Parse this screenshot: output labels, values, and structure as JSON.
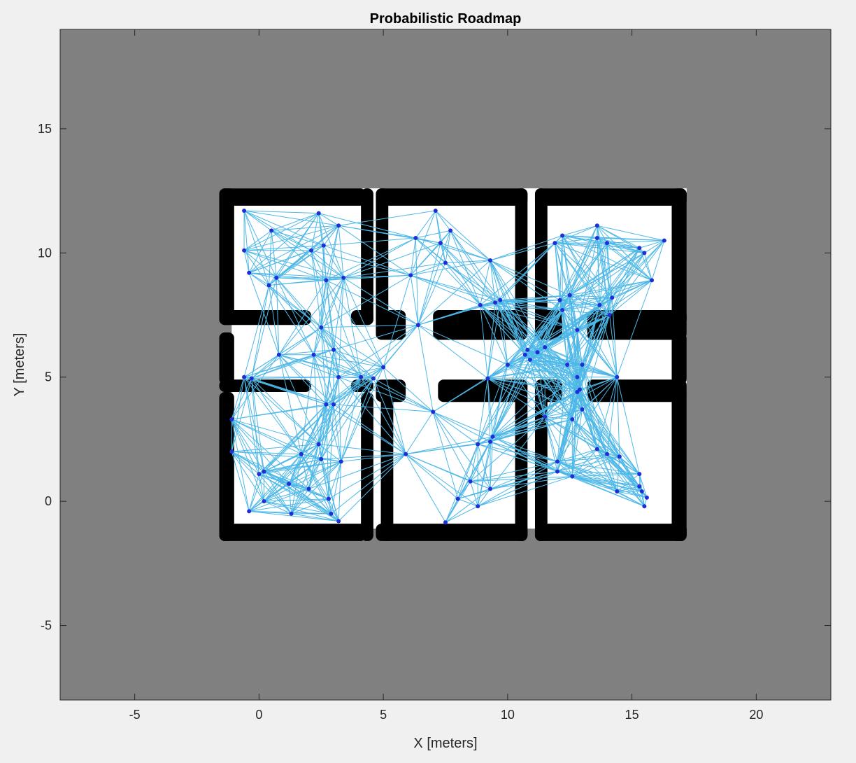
{
  "chart_data": {
    "type": "scatter",
    "title": "Probabilistic Roadmap",
    "xlabel": "X [meters]",
    "ylabel": "Y [meters]",
    "xlim": [
      -8,
      23
    ],
    "ylim": [
      -8,
      19
    ],
    "xticks": [
      -5,
      0,
      5,
      10,
      15,
      20
    ],
    "yticks": [
      -5,
      0,
      5,
      10,
      15
    ],
    "xtick_labels": [
      "-5",
      "0",
      "5",
      "10",
      "15",
      "20"
    ],
    "ytick_labels": [
      "-5",
      "0",
      "5",
      "10",
      "15"
    ],
    "colors": {
      "unknown_space": "#808080",
      "free_space": "#ffffff",
      "walls": "#000000",
      "edges": "#4db8e8",
      "nodes": "#1f2fd6"
    },
    "map": {
      "free_space": [
        {
          "x": [
            -1.1,
            17.2
          ],
          "y": [
            -1.1,
            12.6
          ]
        }
      ],
      "walls": [
        {
          "x": [
            -1.6,
            4.3
          ],
          "y": [
            11.9,
            12.6
          ]
        },
        {
          "x": [
            4.7,
            10.8
          ],
          "y": [
            11.9,
            12.6
          ]
        },
        {
          "x": [
            11.1,
            17.2
          ],
          "y": [
            11.9,
            12.6
          ]
        },
        {
          "x": [
            -1.6,
            4.3
          ],
          "y": [
            -1.6,
            -0.9
          ]
        },
        {
          "x": [
            4.7,
            10.8
          ],
          "y": [
            -1.6,
            -0.9
          ]
        },
        {
          "x": [
            11.1,
            17.2
          ],
          "y": [
            -1.6,
            -0.9
          ]
        },
        {
          "x": [
            -1.6,
            -1.0
          ],
          "y": [
            7.1,
            12.6
          ]
        },
        {
          "x": [
            -1.6,
            -1.0
          ],
          "y": [
            4.7,
            6.8
          ]
        },
        {
          "x": [
            -1.6,
            -1.0
          ],
          "y": [
            -1.6,
            4.4
          ]
        },
        {
          "x": [
            16.6,
            17.2
          ],
          "y": [
            7.1,
            12.6
          ]
        },
        {
          "x": [
            16.6,
            17.2
          ],
          "y": [
            4.7,
            6.8
          ]
        },
        {
          "x": [
            16.6,
            17.2
          ],
          "y": [
            -1.6,
            4.4
          ]
        },
        {
          "x": [
            4.1,
            4.6
          ],
          "y": [
            7.1,
            12.6
          ]
        },
        {
          "x": [
            4.7,
            5.2
          ],
          "y": [
            7.1,
            12.6
          ]
        },
        {
          "x": [
            10.3,
            10.8
          ],
          "y": [
            7.1,
            12.6
          ]
        },
        {
          "x": [
            11.1,
            11.6
          ],
          "y": [
            7.1,
            12.6
          ]
        },
        {
          "x": [
            4.1,
            4.6
          ],
          "y": [
            -1.6,
            4.4
          ]
        },
        {
          "x": [
            4.9,
            5.4
          ],
          "y": [
            -1.6,
            4.4
          ]
        },
        {
          "x": [
            10.3,
            10.8
          ],
          "y": [
            -1.6,
            4.4
          ]
        },
        {
          "x": [
            11.1,
            11.6
          ],
          "y": [
            -1.6,
            4.4
          ]
        },
        {
          "x": [
            -1.6,
            2.1
          ],
          "y": [
            7.1,
            7.7
          ]
        },
        {
          "x": [
            -1.6,
            2.1
          ],
          "y": [
            4.4,
            4.9
          ]
        },
        {
          "x": [
            3.7,
            4.6
          ],
          "y": [
            7.1,
            7.7
          ]
        },
        {
          "x": [
            3.7,
            4.6
          ],
          "y": [
            4.4,
            4.9
          ]
        },
        {
          "x": [
            4.7,
            5.9
          ],
          "y": [
            6.5,
            7.7
          ]
        },
        {
          "x": [
            4.7,
            5.9
          ],
          "y": [
            4.0,
            4.9
          ]
        },
        {
          "x": [
            7.0,
            10.8
          ],
          "y": [
            6.5,
            7.7
          ]
        },
        {
          "x": [
            7.2,
            10.8
          ],
          "y": [
            4.0,
            4.9
          ]
        },
        {
          "x": [
            11.1,
            12.2
          ],
          "y": [
            6.5,
            7.7
          ]
        },
        {
          "x": [
            11.1,
            12.2
          ],
          "y": [
            4.0,
            4.9
          ]
        },
        {
          "x": [
            13.2,
            17.2
          ],
          "y": [
            6.5,
            7.7
          ]
        },
        {
          "x": [
            13.2,
            17.2
          ],
          "y": [
            4.0,
            4.9
          ]
        }
      ]
    },
    "nodes": [
      {
        "x": -0.6,
        "y": 11.7
      },
      {
        "x": 2.4,
        "y": 11.6
      },
      {
        "x": 0.5,
        "y": 10.9
      },
      {
        "x": 3.2,
        "y": 11.1
      },
      {
        "x": -0.6,
        "y": 10.1
      },
      {
        "x": 2.1,
        "y": 10.1
      },
      {
        "x": 2.6,
        "y": 10.3
      },
      {
        "x": -0.4,
        "y": 9.2
      },
      {
        "x": 0.7,
        "y": 9.0
      },
      {
        "x": 0.4,
        "y": 8.7
      },
      {
        "x": 2.7,
        "y": 8.9
      },
      {
        "x": 3.4,
        "y": 9.0
      },
      {
        "x": 7.1,
        "y": 11.7
      },
      {
        "x": 6.3,
        "y": 10.6
      },
      {
        "x": 7.7,
        "y": 10.9
      },
      {
        "x": 7.3,
        "y": 10.4
      },
      {
        "x": 7.5,
        "y": 9.6
      },
      {
        "x": 9.3,
        "y": 9.7
      },
      {
        "x": 6.1,
        "y": 9.1
      },
      {
        "x": 8.9,
        "y": 7.9
      },
      {
        "x": 9.5,
        "y": 8.0
      },
      {
        "x": 9.7,
        "y": 8.1
      },
      {
        "x": 6.4,
        "y": 7.1
      },
      {
        "x": 12.2,
        "y": 10.7
      },
      {
        "x": 11.9,
        "y": 10.4
      },
      {
        "x": 13.6,
        "y": 11.1
      },
      {
        "x": 13.6,
        "y": 10.6
      },
      {
        "x": 14.0,
        "y": 10.4
      },
      {
        "x": 15.3,
        "y": 10.2
      },
      {
        "x": 15.5,
        "y": 10.0
      },
      {
        "x": 16.3,
        "y": 10.5
      },
      {
        "x": 15.8,
        "y": 8.9
      },
      {
        "x": 12.1,
        "y": 8.1
      },
      {
        "x": 12.5,
        "y": 8.3
      },
      {
        "x": 13.7,
        "y": 7.9
      },
      {
        "x": 14.2,
        "y": 8.2
      },
      {
        "x": 14.1,
        "y": 7.5
      },
      {
        "x": 12.2,
        "y": 7.7
      },
      {
        "x": 12.8,
        "y": 6.9
      },
      {
        "x": 2.5,
        "y": 7.0
      },
      {
        "x": 0.8,
        "y": 5.9
      },
      {
        "x": 2.2,
        "y": 5.9
      },
      {
        "x": 3.0,
        "y": 6.1
      },
      {
        "x": -0.6,
        "y": 5.0
      },
      {
        "x": -0.3,
        "y": 4.95
      },
      {
        "x": 3.2,
        "y": 5.0
      },
      {
        "x": 4.1,
        "y": 5.0
      },
      {
        "x": 4.6,
        "y": 4.95
      },
      {
        "x": 5.0,
        "y": 5.4
      },
      {
        "x": 9.2,
        "y": 4.95
      },
      {
        "x": 10.0,
        "y": 5.5
      },
      {
        "x": 10.7,
        "y": 5.9
      },
      {
        "x": 10.8,
        "y": 6.1
      },
      {
        "x": 10.9,
        "y": 5.7
      },
      {
        "x": 11.2,
        "y": 6.0
      },
      {
        "x": 11.5,
        "y": 6.2
      },
      {
        "x": 12.4,
        "y": 5.5
      },
      {
        "x": 12.8,
        "y": 5.0
      },
      {
        "x": 13.0,
        "y": 5.5
      },
      {
        "x": 14.4,
        "y": 5.0
      },
      {
        "x": 12.9,
        "y": 4.5
      },
      {
        "x": 12.8,
        "y": 4.4
      },
      {
        "x": 2.7,
        "y": 3.9
      },
      {
        "x": 3.0,
        "y": 3.9
      },
      {
        "x": 7.0,
        "y": 3.6
      },
      {
        "x": 13.0,
        "y": 3.7
      },
      {
        "x": -1.1,
        "y": 3.3
      },
      {
        "x": 9.4,
        "y": 2.6
      },
      {
        "x": 9.3,
        "y": 2.4
      },
      {
        "x": 8.8,
        "y": 2.3
      },
      {
        "x": 2.4,
        "y": 2.3
      },
      {
        "x": 1.7,
        "y": 1.9
      },
      {
        "x": 2.5,
        "y": 1.7
      },
      {
        "x": 3.3,
        "y": 1.6
      },
      {
        "x": -1.1,
        "y": 2.0
      },
      {
        "x": 5.9,
        "y": 1.9
      },
      {
        "x": 0.2,
        "y": 1.2
      },
      {
        "x": 0.0,
        "y": 1.1
      },
      {
        "x": 1.2,
        "y": 0.7
      },
      {
        "x": 8.5,
        "y": 0.8
      },
      {
        "x": 9.3,
        "y": 0.5
      },
      {
        "x": 2.0,
        "y": 0.5
      },
      {
        "x": 8.0,
        "y": 0.1
      },
      {
        "x": 8.8,
        "y": -0.2
      },
      {
        "x": 0.2,
        "y": 0.0
      },
      {
        "x": 2.8,
        "y": 0.1
      },
      {
        "x": -0.4,
        "y": -0.4
      },
      {
        "x": 1.3,
        "y": -0.5
      },
      {
        "x": 2.9,
        "y": -0.5
      },
      {
        "x": 3.2,
        "y": -0.8
      },
      {
        "x": 7.5,
        "y": -0.85
      },
      {
        "x": 11.5,
        "y": 3.4
      },
      {
        "x": 12.6,
        "y": 3.3
      },
      {
        "x": 13.6,
        "y": 2.1
      },
      {
        "x": 14.0,
        "y": 1.9
      },
      {
        "x": 14.5,
        "y": 1.8
      },
      {
        "x": 12.0,
        "y": 1.6
      },
      {
        "x": 12.0,
        "y": 1.2
      },
      {
        "x": 12.6,
        "y": 1.0
      },
      {
        "x": 15.3,
        "y": 1.1
      },
      {
        "x": 15.3,
        "y": 0.6
      },
      {
        "x": 14.4,
        "y": 0.4
      },
      {
        "x": 15.4,
        "y": 0.4
      },
      {
        "x": 15.6,
        "y": 0.15
      },
      {
        "x": 15.5,
        "y": -0.2
      }
    ]
  }
}
